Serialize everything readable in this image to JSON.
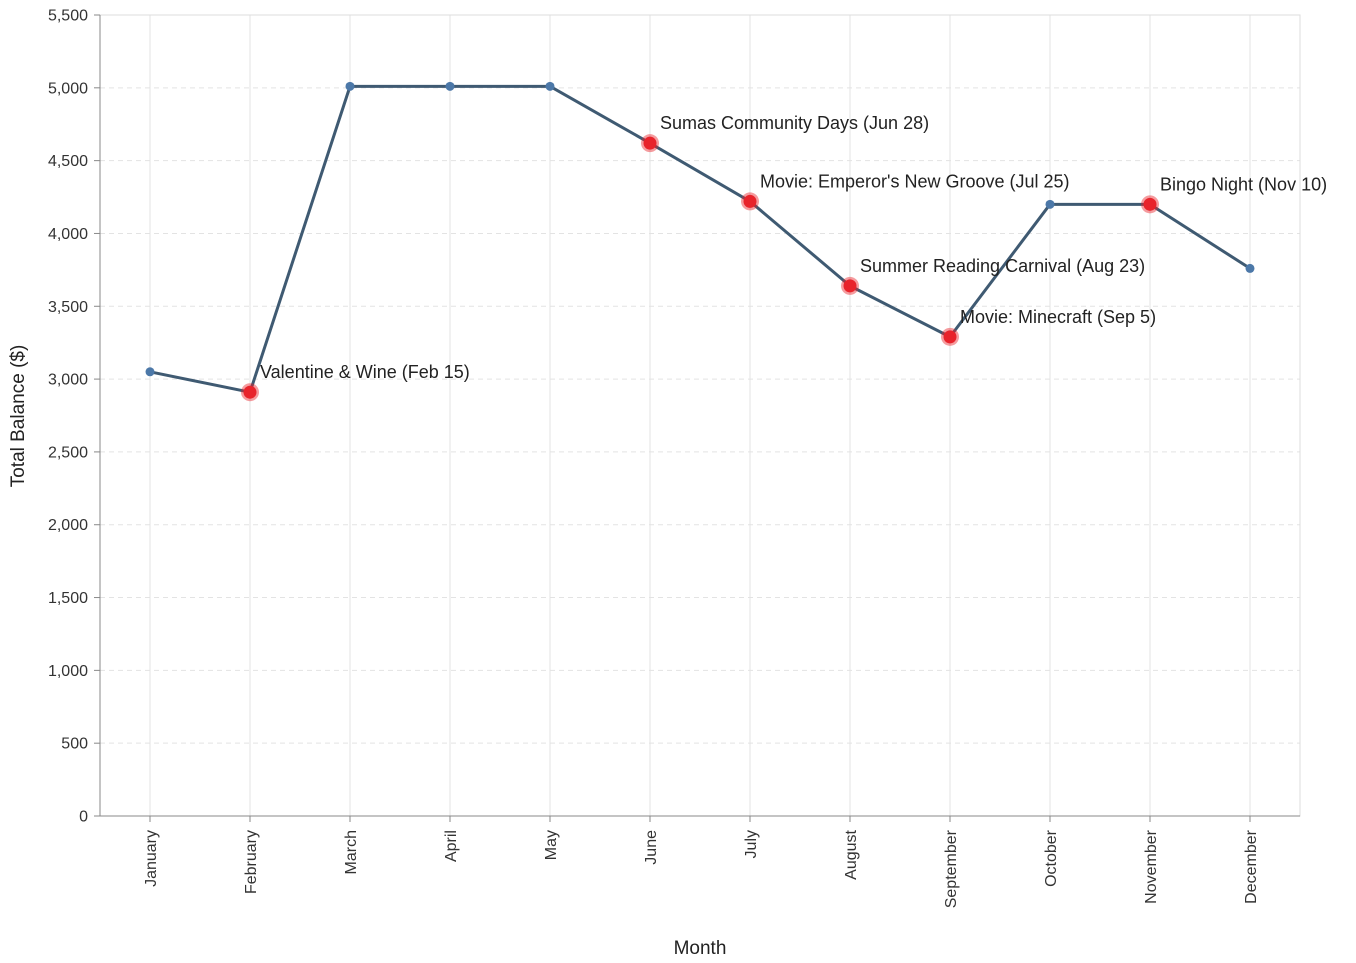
{
  "chart_data": {
    "type": "line",
    "title": "",
    "xlabel": "Month",
    "ylabel": "Total Balance ($)",
    "ylim": [
      0,
      5500
    ],
    "yticks": [
      0,
      500,
      1000,
      1500,
      2000,
      2500,
      3000,
      3500,
      4000,
      4500,
      5000,
      5500
    ],
    "ytick_labels": [
      "0",
      "500",
      "1,000",
      "1,500",
      "2,000",
      "2,500",
      "3,000",
      "3,500",
      "4,000",
      "4,500",
      "5,000",
      "5,500"
    ],
    "categories": [
      "January",
      "February",
      "March",
      "April",
      "May",
      "June",
      "July",
      "August",
      "September",
      "October",
      "November",
      "December"
    ],
    "values": [
      3050,
      2910,
      5010,
      5010,
      5010,
      4620,
      4220,
      3640,
      3290,
      4200,
      4200,
      3760
    ],
    "grid": true,
    "events": [
      {
        "month": "February",
        "label": "Valentine & Wine (Feb 15)"
      },
      {
        "month": "June",
        "label": "Sumas Community Days (Jun 28)"
      },
      {
        "month": "July",
        "label": "Movie: Emperor's New Groove (Jul 25)"
      },
      {
        "month": "August",
        "label": "Summer Reading Carnival (Aug 23)"
      },
      {
        "month": "September",
        "label": "Movie: Minecraft (Sep 5)"
      },
      {
        "month": "November",
        "label": "Bingo Night (Nov 10)"
      }
    ],
    "colors": {
      "line": "#3f5a72",
      "point": "#4c78a8",
      "event_point": "#e8232b",
      "grid": "#e3e3e3",
      "axis": "#888888"
    }
  }
}
